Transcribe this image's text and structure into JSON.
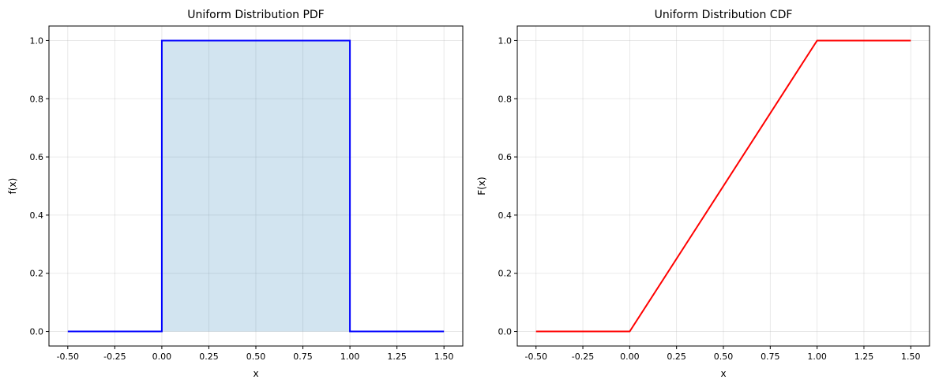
{
  "chart_data": [
    {
      "id": "pdf",
      "type": "line",
      "title": "Uniform Distribution PDF",
      "xlabel": "x",
      "ylabel": "f(x)",
      "xlim": [
        -0.6,
        1.6
      ],
      "ylim": [
        -0.05,
        1.05
      ],
      "xticks": [
        "-0.50",
        "-0.25",
        "0.00",
        "0.25",
        "0.50",
        "0.75",
        "1.00",
        "1.25",
        "1.50"
      ],
      "yticks": [
        "0.0",
        "0.2",
        "0.4",
        "0.6",
        "0.8",
        "1.0"
      ],
      "grid": true,
      "series": [
        {
          "color": "#0000ff",
          "x": [
            -0.5,
            0.0,
            0.0,
            1.0,
            1.0,
            1.5
          ],
          "y": [
            0,
            0,
            1,
            1,
            0,
            0
          ]
        }
      ],
      "fill": {
        "x": [
          0.0,
          1.0
        ],
        "y": [
          1,
          1
        ],
        "color": "#1f77b4",
        "opacity": 0.2
      }
    },
    {
      "id": "cdf",
      "type": "line",
      "title": "Uniform Distribution CDF",
      "xlabel": "x",
      "ylabel": "F(x)",
      "xlim": [
        -0.6,
        1.6
      ],
      "ylim": [
        -0.05,
        1.05
      ],
      "xticks": [
        "-0.50",
        "-0.25",
        "0.00",
        "0.25",
        "0.50",
        "0.75",
        "1.00",
        "1.25",
        "1.50"
      ],
      "yticks": [
        "0.0",
        "0.2",
        "0.4",
        "0.6",
        "0.8",
        "1.0"
      ],
      "grid": true,
      "series": [
        {
          "color": "#ff0000",
          "x": [
            -0.5,
            0.0,
            1.0,
            1.5
          ],
          "y": [
            0,
            0,
            1,
            1
          ]
        }
      ]
    }
  ]
}
